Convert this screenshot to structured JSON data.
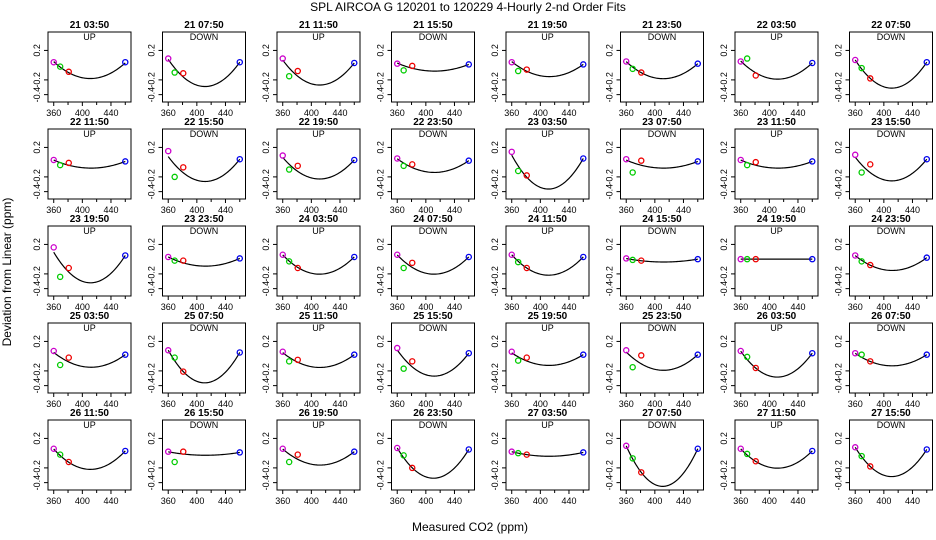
{
  "figure": {
    "title": "SPL   AIRCOA G   120201 to 120229   4-Hourly 2-nd Order Fits",
    "xlabel": "Measured CO2 (ppm)",
    "ylabel": "Deviation from Linear (ppm)"
  },
  "colors": {
    "curve": "#000000",
    "point_magenta": "#cc00cc",
    "point_green": "#00cc00",
    "point_red": "#ee0000",
    "point_blue": "#0000ee"
  },
  "chart_data": {
    "type": "scatter",
    "description_axes": "each panel: x = measured CO2 (ppm), y = deviation from linear (ppm), with fitted 2nd-order curve",
    "xlim": [
      352,
      468
    ],
    "ylim": [
      -0.5,
      0.45
    ],
    "xticks": [
      360,
      400,
      440
    ],
    "yticks": [
      0.2,
      -0.2,
      -0.4
    ],
    "xticks_minor": [
      380,
      420,
      460
    ],
    "ytick_labels": [
      "0.2",
      "-0.2",
      "-0.4"
    ],
    "xtick_labels": [
      "360",
      "400",
      "440"
    ],
    "standard_x": [
      360,
      369,
      381,
      460
    ],
    "panels": [
      {
        "title": "21 03:50",
        "mode": "UP",
        "dev": [
          0.05,
          -0.03,
          -0.1,
          0.03
        ],
        "pts": [
          0.04,
          -0.02,
          -0.09,
          0.04
        ]
      },
      {
        "title": "21 07:50",
        "mode": "DOWN",
        "dev": [
          0.08,
          -0.04,
          -0.16,
          0.04
        ],
        "pts": [
          0.09,
          -0.1,
          -0.11,
          0.04
        ]
      },
      {
        "title": "21 11:50",
        "mode": "UP",
        "dev": [
          0.07,
          -0.04,
          -0.15,
          0.03
        ],
        "pts": [
          0.09,
          -0.15,
          -0.08,
          0.03
        ]
      },
      {
        "title": "21 15:50",
        "mode": "DOWN",
        "dev": [
          0.03,
          -0.01,
          -0.04,
          0.01
        ],
        "pts": [
          0.02,
          -0.07,
          -0.01,
          0.01
        ]
      },
      {
        "title": "21 19:50",
        "mode": "UP",
        "dev": [
          0.05,
          -0.02,
          -0.08,
          0.01
        ],
        "pts": [
          0.04,
          -0.08,
          -0.06,
          0.01
        ]
      },
      {
        "title": "21 23:50",
        "mode": "DOWN",
        "dev": [
          0.05,
          -0.03,
          -0.1,
          0.02
        ],
        "pts": [
          0.05,
          -0.05,
          -0.1,
          0.02
        ]
      },
      {
        "title": "22 03:50",
        "mode": "UP",
        "dev": [
          0.06,
          -0.03,
          -0.1,
          0.03
        ],
        "pts": [
          0.05,
          0.09,
          -0.14,
          0.03
        ]
      },
      {
        "title": "22 07:50",
        "mode": "DOWN",
        "dev": [
          0.07,
          -0.05,
          -0.18,
          0.04
        ],
        "pts": [
          0.07,
          -0.04,
          -0.18,
          0.04
        ]
      },
      {
        "title": "22 11:50",
        "mode": "UP",
        "dev": [
          0.03,
          -0.01,
          -0.04,
          0.01
        ],
        "pts": [
          0.03,
          -0.04,
          -0.01,
          0.01
        ]
      },
      {
        "title": "22 15:50",
        "mode": "DOWN",
        "dev": [
          0.08,
          -0.04,
          -0.14,
          0.04
        ],
        "pts": [
          0.15,
          -0.2,
          -0.07,
          0.04
        ]
      },
      {
        "title": "22 19:50",
        "mode": "UP",
        "dev": [
          0.07,
          -0.04,
          -0.12,
          0.03
        ],
        "pts": [
          0.09,
          -0.1,
          -0.05,
          0.03
        ]
      },
      {
        "title": "22 23:50",
        "mode": "DOWN",
        "dev": [
          0.05,
          -0.02,
          -0.07,
          0.02
        ],
        "pts": [
          0.05,
          -0.05,
          -0.03,
          0.02
        ]
      },
      {
        "title": "23 03:50",
        "mode": "UP",
        "dev": [
          0.1,
          -0.06,
          -0.2,
          0.05
        ],
        "pts": [
          0.14,
          -0.12,
          -0.18,
          0.05
        ]
      },
      {
        "title": "23 07:50",
        "mode": "DOWN",
        "dev": [
          0.03,
          -0.01,
          -0.04,
          0.01
        ],
        "pts": [
          0.04,
          -0.14,
          0.02,
          0.01
        ]
      },
      {
        "title": "23 11:50",
        "mode": "UP",
        "dev": [
          0.03,
          -0.01,
          -0.04,
          0.01
        ],
        "pts": [
          0.03,
          -0.04,
          0.0,
          0.01
        ]
      },
      {
        "title": "23 15:50",
        "mode": "DOWN",
        "dev": [
          0.07,
          -0.04,
          -0.14,
          0.04
        ],
        "pts": [
          0.1,
          -0.14,
          -0.03,
          0.04
        ]
      },
      {
        "title": "23 19:50",
        "mode": "UP",
        "dev": [
          0.1,
          -0.05,
          -0.17,
          0.05
        ],
        "pts": [
          0.16,
          -0.24,
          -0.12,
          0.05
        ]
      },
      {
        "title": "23 23:50",
        "mode": "DOWN",
        "dev": [
          0.03,
          -0.01,
          -0.05,
          0.01
        ],
        "pts": [
          0.03,
          -0.02,
          -0.02,
          0.01
        ]
      },
      {
        "title": "24 03:50",
        "mode": "UP",
        "dev": [
          0.06,
          -0.03,
          -0.11,
          0.03
        ],
        "pts": [
          0.06,
          -0.03,
          -0.12,
          0.03
        ]
      },
      {
        "title": "24 07:50",
        "mode": "DOWN",
        "dev": [
          0.06,
          -0.03,
          -0.11,
          0.03
        ],
        "pts": [
          0.06,
          -0.12,
          -0.05,
          0.03
        ]
      },
      {
        "title": "24 11:50",
        "mode": "UP",
        "dev": [
          0.06,
          -0.03,
          -0.12,
          0.03
        ],
        "pts": [
          0.06,
          -0.04,
          -0.12,
          0.03
        ]
      },
      {
        "title": "24 15:50",
        "mode": "DOWN",
        "dev": [
          0.01,
          -0.01,
          -0.02,
          0.0
        ],
        "pts": [
          0.01,
          -0.01,
          -0.02,
          0.0
        ]
      },
      {
        "title": "24 19:50",
        "mode": "UP",
        "dev": [
          0.0,
          0.0,
          0.0,
          0.0
        ],
        "pts": [
          0.0,
          0.0,
          0.0,
          0.0
        ]
      },
      {
        "title": "24 23:50",
        "mode": "DOWN",
        "dev": [
          0.05,
          -0.02,
          -0.08,
          0.02
        ],
        "pts": [
          0.05,
          -0.03,
          -0.08,
          0.02
        ]
      },
      {
        "title": "25 03:50",
        "mode": "UP",
        "dev": [
          0.06,
          -0.03,
          -0.07,
          0.02
        ],
        "pts": [
          0.07,
          -0.12,
          -0.02,
          0.02
        ]
      },
      {
        "title": "25 07:50",
        "mode": "DOWN",
        "dev": [
          0.08,
          -0.06,
          -0.21,
          0.05
        ],
        "pts": [
          0.08,
          -0.02,
          -0.21,
          0.05
        ]
      },
      {
        "title": "25 11:50",
        "mode": "UP",
        "dev": [
          0.05,
          -0.02,
          -0.08,
          0.02
        ],
        "pts": [
          0.06,
          -0.07,
          -0.05,
          0.02
        ]
      },
      {
        "title": "25 15:50",
        "mode": "DOWN",
        "dev": [
          0.09,
          -0.04,
          -0.14,
          0.04
        ],
        "pts": [
          0.11,
          -0.17,
          -0.07,
          0.04
        ]
      },
      {
        "title": "25 19:50",
        "mode": "UP",
        "dev": [
          0.05,
          -0.02,
          -0.06,
          0.02
        ],
        "pts": [
          0.06,
          -0.06,
          -0.02,
          0.02
        ]
      },
      {
        "title": "25 23:50",
        "mode": "DOWN",
        "dev": [
          0.06,
          -0.03,
          -0.1,
          0.02
        ],
        "pts": [
          0.08,
          -0.15,
          0.01,
          0.02
        ]
      },
      {
        "title": "26 03:50",
        "mode": "UP",
        "dev": [
          0.07,
          -0.05,
          -0.16,
          0.04
        ],
        "pts": [
          0.07,
          -0.01,
          -0.16,
          0.04
        ]
      },
      {
        "title": "26 07:50",
        "mode": "DOWN",
        "dev": [
          0.04,
          -0.02,
          -0.07,
          0.02
        ],
        "pts": [
          0.04,
          0.02,
          -0.07,
          0.02
        ]
      },
      {
        "title": "26 11:50",
        "mode": "UP",
        "dev": [
          0.06,
          -0.04,
          -0.12,
          0.03
        ],
        "pts": [
          0.06,
          -0.02,
          -0.12,
          0.03
        ]
      },
      {
        "title": "26 15:50",
        "mode": "DOWN",
        "dev": [
          0.02,
          0.0,
          -0.01,
          0.01
        ],
        "pts": [
          0.02,
          -0.12,
          0.02,
          0.01
        ]
      },
      {
        "title": "26 19:50",
        "mode": "UP",
        "dev": [
          0.06,
          -0.02,
          -0.08,
          0.02
        ],
        "pts": [
          0.06,
          -0.12,
          -0.02,
          0.02
        ]
      },
      {
        "title": "26 23:50",
        "mode": "DOWN",
        "dev": [
          0.07,
          -0.06,
          -0.2,
          0.05
        ],
        "pts": [
          0.07,
          -0.03,
          -0.2,
          0.05
        ]
      },
      {
        "title": "27 03:50",
        "mode": "UP",
        "dev": [
          0.02,
          0.0,
          -0.02,
          0.01
        ],
        "pts": [
          0.02,
          0.0,
          -0.02,
          0.01
        ]
      },
      {
        "title": "27 07:50",
        "mode": "DOWN",
        "dev": [
          0.1,
          -0.08,
          -0.26,
          0.06
        ],
        "pts": [
          0.1,
          -0.07,
          -0.26,
          0.06
        ]
      },
      {
        "title": "27 11:50",
        "mode": "UP",
        "dev": [
          0.06,
          -0.03,
          -0.11,
          0.03
        ],
        "pts": [
          0.06,
          -0.01,
          -0.11,
          0.03
        ]
      },
      {
        "title": "27 15:50",
        "mode": "DOWN",
        "dev": [
          0.08,
          -0.05,
          -0.18,
          0.05
        ],
        "pts": [
          0.08,
          -0.04,
          -0.18,
          0.05
        ]
      }
    ]
  }
}
